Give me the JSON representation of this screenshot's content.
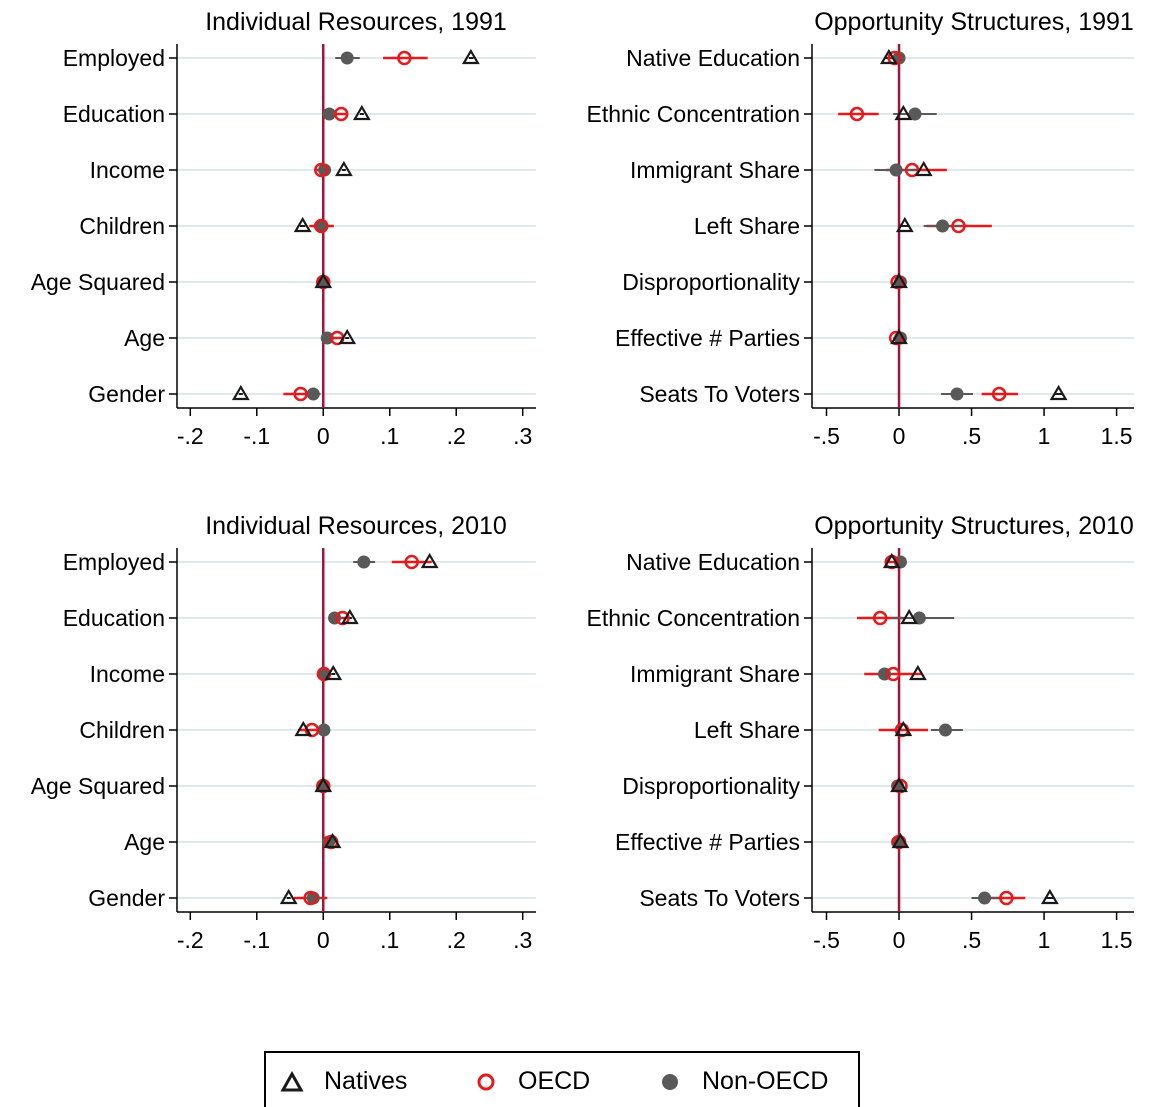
{
  "colors": {
    "natives": "#1a1a1a",
    "oecd": "#e8191b",
    "nonoecd": "#595959",
    "zero_line": "#a0163a",
    "grid": "#dfe8ec"
  },
  "legend": {
    "natives": "Natives",
    "oecd": "OECD",
    "nonoecd": "Non-OECD"
  },
  "chart_data": [
    {
      "type": "scatter",
      "title": "Individual Resources, 1991",
      "categories": [
        "Employed",
        "Education",
        "Income",
        "Children",
        "Age Squared",
        "Age",
        "Gender"
      ],
      "xlim": [
        -0.22,
        0.32
      ],
      "ticks": [
        -0.2,
        -0.1,
        0,
        0.1,
        0.2,
        0.3
      ],
      "tick_labels": [
        "-.2",
        "-.1",
        "0",
        ".1",
        ".2",
        ".3"
      ],
      "series": [
        {
          "name": "Natives",
          "values": [
            0.222,
            0.058,
            0.031,
            -0.031,
            0.0,
            0.036,
            -0.124
          ],
          "ci": [
            [
              0.219,
              0.226
            ],
            [
              0.055,
              0.061
            ],
            [
              0.028,
              0.034
            ],
            [
              -0.035,
              -0.027
            ],
            [
              -0.001,
              0.001
            ],
            [
              0.033,
              0.039
            ],
            [
              -0.127,
              -0.121
            ]
          ]
        },
        {
          "name": "OECD",
          "values": [
            0.122,
            0.027,
            -0.003,
            -0.003,
            0.0,
            0.021,
            -0.034
          ],
          "ci": [
            [
              0.09,
              0.157
            ],
            [
              0.017,
              0.037
            ],
            [
              -0.01,
              0.004
            ],
            [
              -0.021,
              0.016
            ],
            [
              -0.001,
              0.001
            ],
            [
              0.012,
              0.03
            ],
            [
              -0.06,
              -0.008
            ]
          ]
        },
        {
          "name": "Non-OECD",
          "values": [
            0.036,
            0.009,
            0.002,
            -0.004,
            0.0,
            0.006,
            -0.015
          ],
          "ci": [
            [
              0.018,
              0.055
            ],
            [
              0.003,
              0.015
            ],
            [
              -0.003,
              0.007
            ],
            [
              -0.012,
              0.004
            ],
            [
              -0.001,
              0.001
            ],
            [
              0.001,
              0.011
            ],
            [
              -0.026,
              -0.004
            ]
          ]
        }
      ]
    },
    {
      "type": "scatter",
      "title": "Opportunity Structures, 1991",
      "categories": [
        "Native Education",
        "Ethnic Concentration",
        "Immigrant Share",
        "Left Share",
        "Disproportionality",
        "Effective # Parties",
        "Seats To Voters"
      ],
      "xlim": [
        -0.6,
        1.62
      ],
      "ticks": [
        -0.5,
        0,
        0.5,
        1,
        1.5
      ],
      "tick_labels": [
        "-.5",
        "0",
        ".5",
        "1",
        "1.5"
      ],
      "series": [
        {
          "name": "Natives",
          "values": [
            -0.07,
            0.03,
            0.17,
            0.04,
            0.0,
            0.0,
            1.1
          ],
          "ci": [
            [
              -0.1,
              -0.04
            ],
            [
              -0.02,
              0.08
            ],
            [
              0.14,
              0.2
            ],
            [
              0.01,
              0.07
            ],
            [
              -0.01,
              0.01
            ],
            [
              -0.01,
              0.01
            ],
            [
              1.07,
              1.13
            ]
          ]
        },
        {
          "name": "OECD",
          "values": [
            -0.03,
            -0.29,
            0.09,
            0.41,
            -0.01,
            -0.02,
            0.69
          ],
          "ci": [
            [
              -0.06,
              0.0
            ],
            [
              -0.42,
              -0.14
            ],
            [
              -0.09,
              0.33
            ],
            [
              0.19,
              0.64
            ],
            [
              -0.03,
              0.01
            ],
            [
              -0.04,
              0.0
            ],
            [
              0.57,
              0.82
            ]
          ]
        },
        {
          "name": "Non-OECD",
          "values": [
            0.0,
            0.11,
            -0.02,
            0.3,
            0.01,
            0.01,
            0.4
          ],
          "ci": [
            [
              -0.02,
              0.02
            ],
            [
              -0.04,
              0.26
            ],
            [
              -0.17,
              0.13
            ],
            [
              0.17,
              0.43
            ],
            [
              -0.01,
              0.03
            ],
            [
              -0.01,
              0.03
            ],
            [
              0.29,
              0.51
            ]
          ]
        }
      ]
    },
    {
      "type": "scatter",
      "title": "Individual Resources, 2010",
      "categories": [
        "Employed",
        "Education",
        "Income",
        "Children",
        "Age Squared",
        "Age",
        "Gender"
      ],
      "xlim": [
        -0.22,
        0.32
      ],
      "ticks": [
        -0.2,
        -0.1,
        0,
        0.1,
        0.2,
        0.3
      ],
      "tick_labels": [
        "-.2",
        "-.1",
        "0",
        ".1",
        ".2",
        ".3"
      ],
      "series": [
        {
          "name": "Natives",
          "values": [
            0.16,
            0.04,
            0.015,
            -0.03,
            0.0,
            0.014,
            -0.052
          ],
          "ci": [
            [
              0.157,
              0.163
            ],
            [
              0.037,
              0.043
            ],
            [
              0.012,
              0.018
            ],
            [
              -0.033,
              -0.027
            ],
            [
              -0.001,
              0.001
            ],
            [
              0.011,
              0.017
            ],
            [
              -0.055,
              -0.049
            ]
          ]
        },
        {
          "name": "OECD",
          "values": [
            0.133,
            0.029,
            0.001,
            -0.017,
            0.0,
            0.012,
            -0.019
          ],
          "ci": [
            [
              0.103,
              0.163
            ],
            [
              0.02,
              0.038
            ],
            [
              -0.004,
              0.006
            ],
            [
              -0.038,
              0.004
            ],
            [
              -0.001,
              0.001
            ],
            [
              0.005,
              0.019
            ],
            [
              -0.044,
              0.006
            ]
          ]
        },
        {
          "name": "Non-OECD",
          "values": [
            0.061,
            0.017,
            0.001,
            0.001,
            0.0,
            0.008,
            -0.015
          ],
          "ci": [
            [
              0.045,
              0.078
            ],
            [
              0.009,
              0.025
            ],
            [
              -0.004,
              0.006
            ],
            [
              -0.006,
              0.008
            ],
            [
              -0.001,
              0.001
            ],
            [
              0.001,
              0.015
            ],
            [
              -0.028,
              -0.002
            ]
          ]
        }
      ]
    },
    {
      "type": "scatter",
      "title": "Opportunity Structures, 2010",
      "categories": [
        "Native Education",
        "Ethnic Concentration",
        "Immigrant Share",
        "Left Share",
        "Disproportionality",
        "Effective # Parties",
        "Seats To Voters"
      ],
      "xlim": [
        -0.6,
        1.62
      ],
      "ticks": [
        -0.5,
        0,
        0.5,
        1,
        1.5
      ],
      "tick_labels": [
        "-.5",
        "0",
        ".5",
        "1",
        "1.5"
      ],
      "series": [
        {
          "name": "Natives",
          "values": [
            -0.05,
            0.07,
            0.13,
            0.03,
            0.0,
            0.01,
            1.04
          ],
          "ci": [
            [
              -0.08,
              -0.02
            ],
            [
              0.02,
              0.12
            ],
            [
              0.1,
              0.16
            ],
            [
              0.0,
              0.06
            ],
            [
              -0.01,
              0.01
            ],
            [
              -0.01,
              0.03
            ],
            [
              1.01,
              1.07
            ]
          ]
        },
        {
          "name": "OECD",
          "values": [
            -0.05,
            -0.13,
            -0.04,
            0.02,
            0.01,
            0.0,
            0.74
          ],
          "ci": [
            [
              -0.08,
              -0.02
            ],
            [
              -0.29,
              0.03
            ],
            [
              -0.24,
              0.16
            ],
            [
              -0.14,
              0.2
            ],
            [
              -0.01,
              0.03
            ],
            [
              -0.02,
              0.02
            ],
            [
              0.61,
              0.87
            ]
          ]
        },
        {
          "name": "Non-OECD",
          "values": [
            0.01,
            0.14,
            -0.1,
            0.32,
            -0.01,
            -0.01,
            0.59
          ],
          "ci": [
            [
              -0.01,
              0.03
            ],
            [
              -0.05,
              0.38
            ],
            [
              -0.15,
              -0.05
            ],
            [
              0.22,
              0.44
            ],
            [
              -0.03,
              0.01
            ],
            [
              -0.03,
              0.01
            ],
            [
              0.5,
              0.68
            ]
          ]
        }
      ]
    }
  ]
}
